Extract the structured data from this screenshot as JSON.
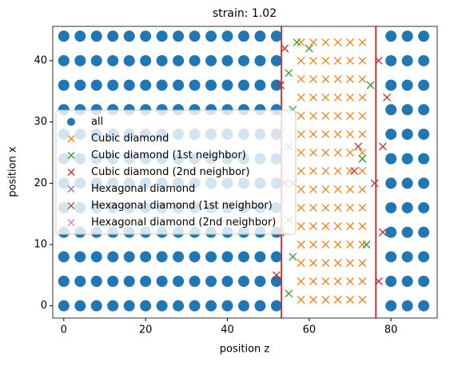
{
  "chart_data": {
    "type": "scatter",
    "title": "strain: 1.02",
    "xlabel": "position z",
    "ylabel": "position x",
    "xlim": [
      -2.7,
      91.3
    ],
    "ylim": [
      -2,
      45.6
    ],
    "xticks": [
      0,
      20,
      40,
      60,
      80
    ],
    "yticks": [
      0,
      10,
      20,
      30,
      40
    ],
    "legend": "center left",
    "vlines": [
      53.2,
      76.3
    ],
    "vline_color": "#d62728",
    "series": [
      {
        "name": "all",
        "color": "#1f77b4",
        "marker": "o",
        "x": [
          0,
          0,
          0,
          0,
          0,
          0,
          0,
          0,
          0,
          0,
          0,
          0,
          4,
          4,
          4,
          4,
          4,
          4,
          4,
          4,
          4,
          4,
          4,
          4,
          8,
          8,
          8,
          8,
          8,
          8,
          8,
          8,
          8,
          8,
          8,
          8,
          12,
          12,
          12,
          12,
          12,
          12,
          12,
          12,
          12,
          12,
          12,
          12,
          16,
          16,
          16,
          16,
          16,
          16,
          16,
          16,
          16,
          16,
          16,
          16,
          20,
          20,
          20,
          20,
          20,
          20,
          20,
          20,
          20,
          20,
          20,
          20,
          24,
          24,
          24,
          24,
          24,
          24,
          24,
          24,
          24,
          24,
          24,
          24,
          28,
          28,
          28,
          28,
          28,
          28,
          28,
          28,
          28,
          28,
          28,
          28,
          32,
          32,
          32,
          32,
          32,
          32,
          32,
          32,
          32,
          32,
          32,
          32,
          36,
          36,
          36,
          36,
          36,
          36,
          36,
          36,
          36,
          36,
          36,
          36,
          40,
          40,
          40,
          40,
          40,
          40,
          40,
          40,
          40,
          40,
          40,
          40,
          44,
          44,
          44,
          44,
          44,
          44,
          44,
          44,
          44,
          44,
          44,
          44,
          48,
          48,
          48,
          48,
          48,
          48,
          48,
          48,
          48,
          48,
          48,
          48,
          52,
          52,
          52,
          52,
          52,
          52,
          52,
          52,
          52,
          52,
          52,
          52,
          80,
          80,
          80,
          80,
          80,
          80,
          80,
          80,
          80,
          80,
          80,
          80,
          84,
          84,
          84,
          84,
          84,
          84,
          84,
          84,
          84,
          84,
          84,
          84,
          88,
          88,
          88,
          88,
          88,
          88,
          88,
          88,
          88,
          88,
          88,
          88
        ],
        "y": [
          0,
          4,
          8,
          12,
          16,
          20,
          24,
          28,
          32,
          36,
          40,
          44,
          0,
          4,
          8,
          12,
          16,
          20,
          24,
          28,
          32,
          36,
          40,
          44,
          0,
          4,
          8,
          12,
          16,
          20,
          24,
          28,
          32,
          36,
          40,
          44,
          0,
          4,
          8,
          12,
          16,
          20,
          24,
          28,
          32,
          36,
          40,
          44,
          0,
          4,
          8,
          12,
          16,
          20,
          24,
          28,
          32,
          36,
          40,
          44,
          0,
          4,
          8,
          12,
          16,
          20,
          24,
          28,
          32,
          36,
          40,
          44,
          0,
          4,
          8,
          12,
          16,
          20,
          24,
          28,
          32,
          36,
          40,
          44,
          0,
          4,
          8,
          12,
          16,
          20,
          24,
          28,
          32,
          36,
          40,
          44,
          0,
          4,
          8,
          12,
          16,
          20,
          24,
          28,
          32,
          36,
          40,
          44,
          0,
          4,
          8,
          12,
          16,
          20,
          24,
          28,
          32,
          36,
          40,
          44,
          0,
          4,
          8,
          12,
          16,
          20,
          24,
          28,
          32,
          36,
          40,
          44,
          0,
          4,
          8,
          12,
          16,
          20,
          24,
          28,
          32,
          36,
          40,
          44,
          0,
          4,
          8,
          12,
          16,
          20,
          24,
          28,
          32,
          36,
          40,
          44,
          0,
          4,
          8,
          12,
          16,
          20,
          24,
          28,
          32,
          36,
          40,
          44,
          0,
          4,
          8,
          12,
          16,
          20,
          24,
          28,
          32,
          36,
          40,
          44,
          0,
          4,
          8,
          12,
          16,
          20,
          24,
          28,
          32,
          36,
          40,
          44,
          0,
          4,
          8,
          12,
          16,
          20,
          24,
          28,
          32,
          36,
          40,
          44
        ]
      },
      {
        "name": "Cubic diamond",
        "color": "#ff7f0e",
        "marker": "x",
        "x": [
          58,
          58,
          58,
          58,
          58,
          58,
          58,
          58,
          58,
          58,
          58,
          58,
          58,
          58,
          58,
          61,
          61,
          61,
          61,
          61,
          61,
          61,
          61,
          61,
          61,
          61,
          61,
          61,
          61,
          61,
          64,
          64,
          64,
          64,
          64,
          64,
          64,
          64,
          64,
          64,
          64,
          64,
          64,
          64,
          64,
          67,
          67,
          67,
          67,
          67,
          67,
          67,
          67,
          67,
          67,
          67,
          67,
          67,
          67,
          67,
          70,
          70,
          70,
          70,
          70,
          70,
          70,
          70,
          70,
          70,
          70,
          70,
          70,
          70,
          70,
          73,
          73,
          73,
          73,
          73,
          73,
          73,
          73,
          73,
          73,
          73,
          73,
          73,
          73,
          73
        ],
        "y": [
          1,
          4,
          7,
          10,
          13,
          16,
          19,
          22,
          25,
          28,
          31,
          34,
          37,
          40,
          43,
          1,
          4,
          7,
          10,
          13,
          16,
          19,
          22,
          25,
          28,
          31,
          34,
          37,
          40,
          43,
          1,
          4,
          7,
          10,
          13,
          16,
          19,
          22,
          25,
          28,
          31,
          34,
          37,
          40,
          43,
          1,
          4,
          7,
          10,
          13,
          16,
          19,
          22,
          25,
          28,
          31,
          34,
          37,
          40,
          43,
          1,
          4,
          7,
          10,
          13,
          16,
          19,
          22,
          25,
          28,
          31,
          34,
          37,
          40,
          43,
          1,
          4,
          7,
          10,
          13,
          16,
          19,
          22,
          25,
          28,
          31,
          34,
          37,
          40,
          43
        ]
      },
      {
        "name": "Cubic diamond (1st neighbor)",
        "color": "#2ca02c",
        "marker": "x",
        "x": [
          55,
          56,
          55,
          56,
          55,
          56,
          55,
          57,
          74,
          73,
          75,
          60
        ],
        "y": [
          2,
          8,
          14,
          20,
          26,
          32,
          38,
          43,
          10,
          24,
          36,
          42
        ]
      },
      {
        "name": "Cubic diamond (2nd neighbor)",
        "color": "#d62728",
        "marker": "x",
        "x": [
          52,
          53,
          54,
          52,
          53,
          54,
          77,
          78,
          76,
          78,
          79,
          77,
          72,
          71
        ],
        "y": [
          5,
          12,
          20,
          28,
          36,
          42,
          4,
          12,
          20,
          26,
          34,
          40,
          26,
          22
        ]
      },
      {
        "name": "Hexagonal diamond",
        "color": "#9467bd",
        "marker": "x",
        "x": [],
        "y": []
      },
      {
        "name": "Hexagonal diamond (1st neighbor)",
        "color": "#8c564b",
        "marker": "x",
        "x": [],
        "y": []
      },
      {
        "name": "Hexagonal diamond (2nd neighbor)",
        "color": "#e377c2",
        "marker": "x",
        "x": [],
        "y": []
      }
    ]
  }
}
